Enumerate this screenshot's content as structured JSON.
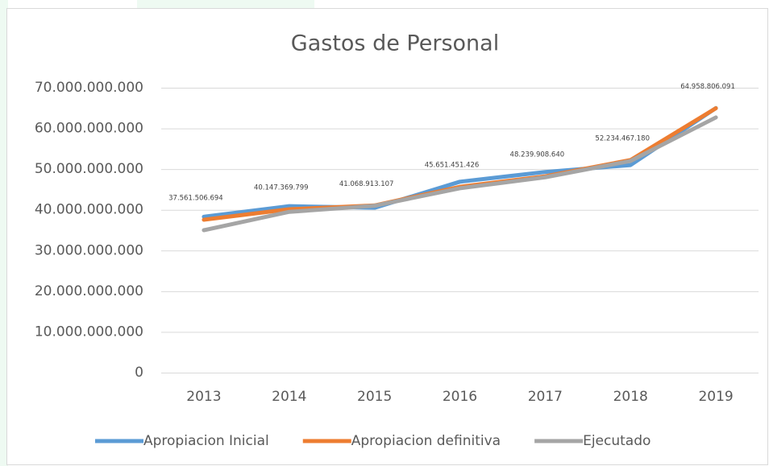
{
  "chart_data": {
    "type": "line",
    "title": "Gastos de Personal",
    "categories": [
      "2013",
      "2014",
      "2015",
      "2016",
      "2017",
      "2018",
      "2019"
    ],
    "series": [
      {
        "name": "Apropiacion Inicial",
        "color": "#5b9bd5",
        "values": [
          38300000000,
          40900000000,
          40500000000,
          46900000000,
          49300000000,
          51000000000,
          65000000000
        ]
      },
      {
        "name": "Apropiacion definitiva",
        "color": "#ed7d31",
        "values": [
          37561506694,
          40147369799,
          41068913107,
          45651451426,
          48239908640,
          52234467180,
          64958806091
        ],
        "value_labels": [
          "37.561.506.694",
          "40.147.369.799",
          "41.068.913.107",
          "45.651.451.426",
          "48.239.908.640",
          "52.234.467.180",
          "64.958.806.091"
        ]
      },
      {
        "name": "Ejecutado",
        "color": "#a5a5a5",
        "values": [
          35000000000,
          39500000000,
          41000000000,
          45300000000,
          48000000000,
          52000000000,
          62700000000
        ]
      }
    ],
    "ylim": [
      0,
      70000000000
    ],
    "yticks": [
      0,
      {
        "value": 10000000000,
        "label": "10.000.000.000"
      },
      {
        "value": 20000000000,
        "label": "20.000.000.000"
      },
      {
        "value": 30000000000,
        "label": "30.000.000.000"
      },
      {
        "value": 40000000000,
        "label": "40.000.000.000"
      },
      {
        "value": 50000000000,
        "label": "50.000.000.000"
      },
      {
        "value": 60000000000,
        "label": "60.000.000.000"
      },
      {
        "value": 70000000000,
        "label": "70.000.000.000"
      }
    ],
    "grid": true,
    "legend": "bottom"
  }
}
